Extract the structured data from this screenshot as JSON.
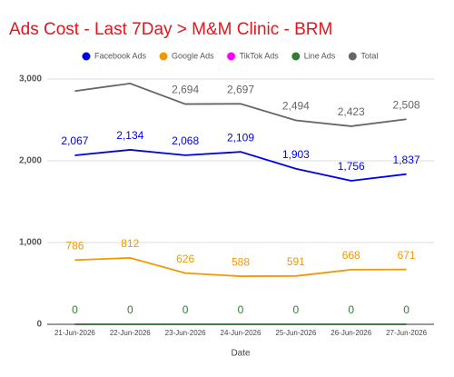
{
  "chart_data": {
    "type": "line",
    "title": "Ads Cost - Last 7Day > M&M Clinic - BRM",
    "x_label": "Date",
    "categories": [
      "21-Jun-2026",
      "22-Jun-2026",
      "23-Jun-2026",
      "24-Jun-2026",
      "25-Jun-2026",
      "26-Jun-2026",
      "27-Jun-2026"
    ],
    "series": [
      {
        "name": "Facebook Ads",
        "color": "#0000ee",
        "values": [
          2067,
          2134,
          2068,
          2109,
          1903,
          1756,
          1837
        ],
        "value_labels": [
          "2,067",
          "2,134",
          "2,068",
          "2,109",
          "1,903",
          "1,756",
          "1,837"
        ],
        "data_labels": true
      },
      {
        "name": "Google Ads",
        "color": "#f29900",
        "values": [
          786,
          812,
          626,
          588,
          591,
          668,
          671
        ],
        "data_labels": true
      },
      {
        "name": "TikTok Ads",
        "color": "#ff00ff",
        "values": [
          0,
          0,
          0,
          0,
          0,
          0,
          0
        ],
        "data_labels": false
      },
      {
        "name": "Line Ads",
        "color": "#2e7d32",
        "values": [
          0,
          0,
          0,
          0,
          0,
          0,
          0
        ],
        "data_labels": true
      },
      {
        "name": "Total",
        "color": "#666666",
        "values": [
          2853,
          2946,
          2694,
          2697,
          2494,
          2423,
          2508
        ],
        "value_labels": [
          null,
          null,
          "2,694",
          "2,697",
          "2,494",
          "2,423",
          "2,508"
        ],
        "data_labels": true
      }
    ],
    "ylim": [
      0,
      3100
    ],
    "yticks": [
      0,
      {
        "value": 1000,
        "label": "1,000"
      },
      {
        "value": 2000,
        "label": "2,000"
      },
      {
        "value": 3000,
        "label": "3,000"
      }
    ],
    "grid": true,
    "legend": "top"
  }
}
